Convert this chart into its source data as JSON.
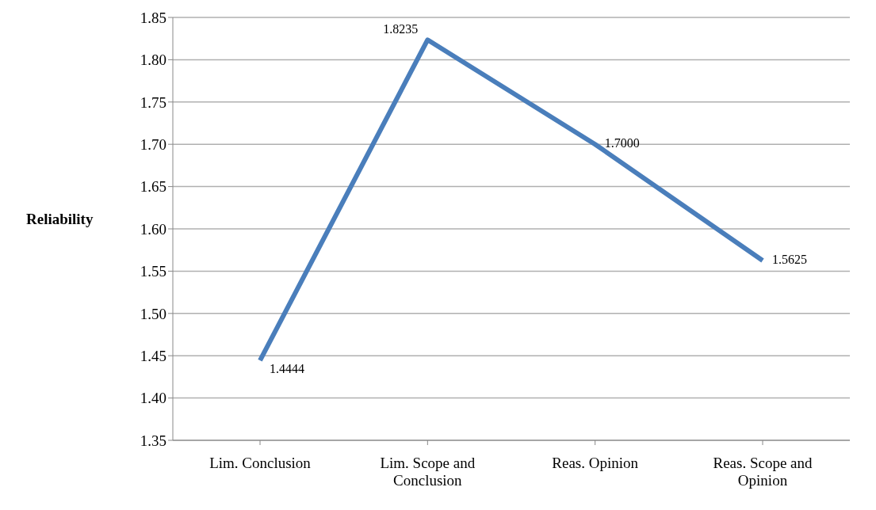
{
  "chart_data": {
    "type": "line",
    "ylabel": "Reliability",
    "categories": [
      "Lim. Conclusion",
      "Lim. Scope and Conclusion",
      "Reas. Opinion",
      "Reas. Scope and Opinion"
    ],
    "series": [
      {
        "color": "#4a7ebb",
        "values": [
          1.4444,
          1.8235,
          1.7,
          1.5625
        ],
        "value_labels": [
          "1.4444",
          "1.8235",
          "1.7000",
          "1.5625"
        ]
      }
    ],
    "ylim": [
      1.35,
      1.85
    ],
    "yticks": [
      1.35,
      {
        "value": 1.4,
        "label": "1.40"
      },
      1.45,
      {
        "value": 1.5,
        "label": "1.50"
      },
      1.55,
      {
        "value": 1.6,
        "label": "1.60"
      },
      1.65,
      {
        "value": 1.7,
        "label": "1.70"
      },
      1.75,
      {
        "value": 1.8,
        "label": "1.80"
      },
      1.85
    ],
    "grid": "y",
    "legend": false,
    "marker": "none",
    "line_style": "solid"
  }
}
